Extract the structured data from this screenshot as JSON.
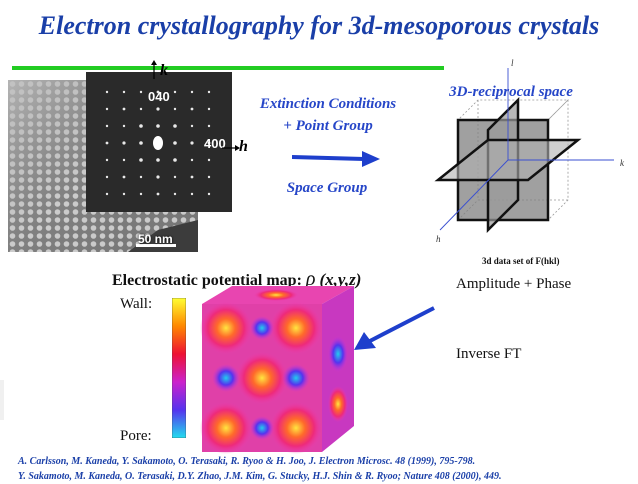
{
  "title": "Electron crystallography for 3d-mesoporous crystals",
  "tem": {
    "diffraction_labels": {
      "k_spot": "040",
      "h_spot": "400"
    },
    "axis_k": "k",
    "axis_h": "h",
    "scale_bar": "50 nm"
  },
  "flow": {
    "extinction": "Extinction Conditions",
    "point_group": "+ Point Group",
    "space_group": "Space Group"
  },
  "reciprocal": {
    "title": "3D-reciprocal space",
    "axis_l": "l",
    "axis_k": "k",
    "axis_h": "h",
    "data_set": "3d data set of F(hkl)"
  },
  "amplitude_phase": "Amplitude + Phase",
  "inverse_ft": "Inverse FT",
  "map": {
    "title_prefix": "Electrostatic potential map:",
    "rho": "ρ",
    "coords": "(x,y,z)",
    "wall": "Wall:",
    "pore": "Pore:"
  },
  "references": [
    "A. Carlsson, M. Kaneda, Y. Sakamoto, O. Terasaki, R. Ryoo & H. Joo, J. Electron Microsc. 48 (1999), 795-798.",
    "Y. Sakamoto, M. Kaneda, O. Terasaki, D.Y. Zhao, J.M. Kim, G. Stucky, H.J. Shin & R. Ryoo; Nature 408 (2000), 449."
  ]
}
